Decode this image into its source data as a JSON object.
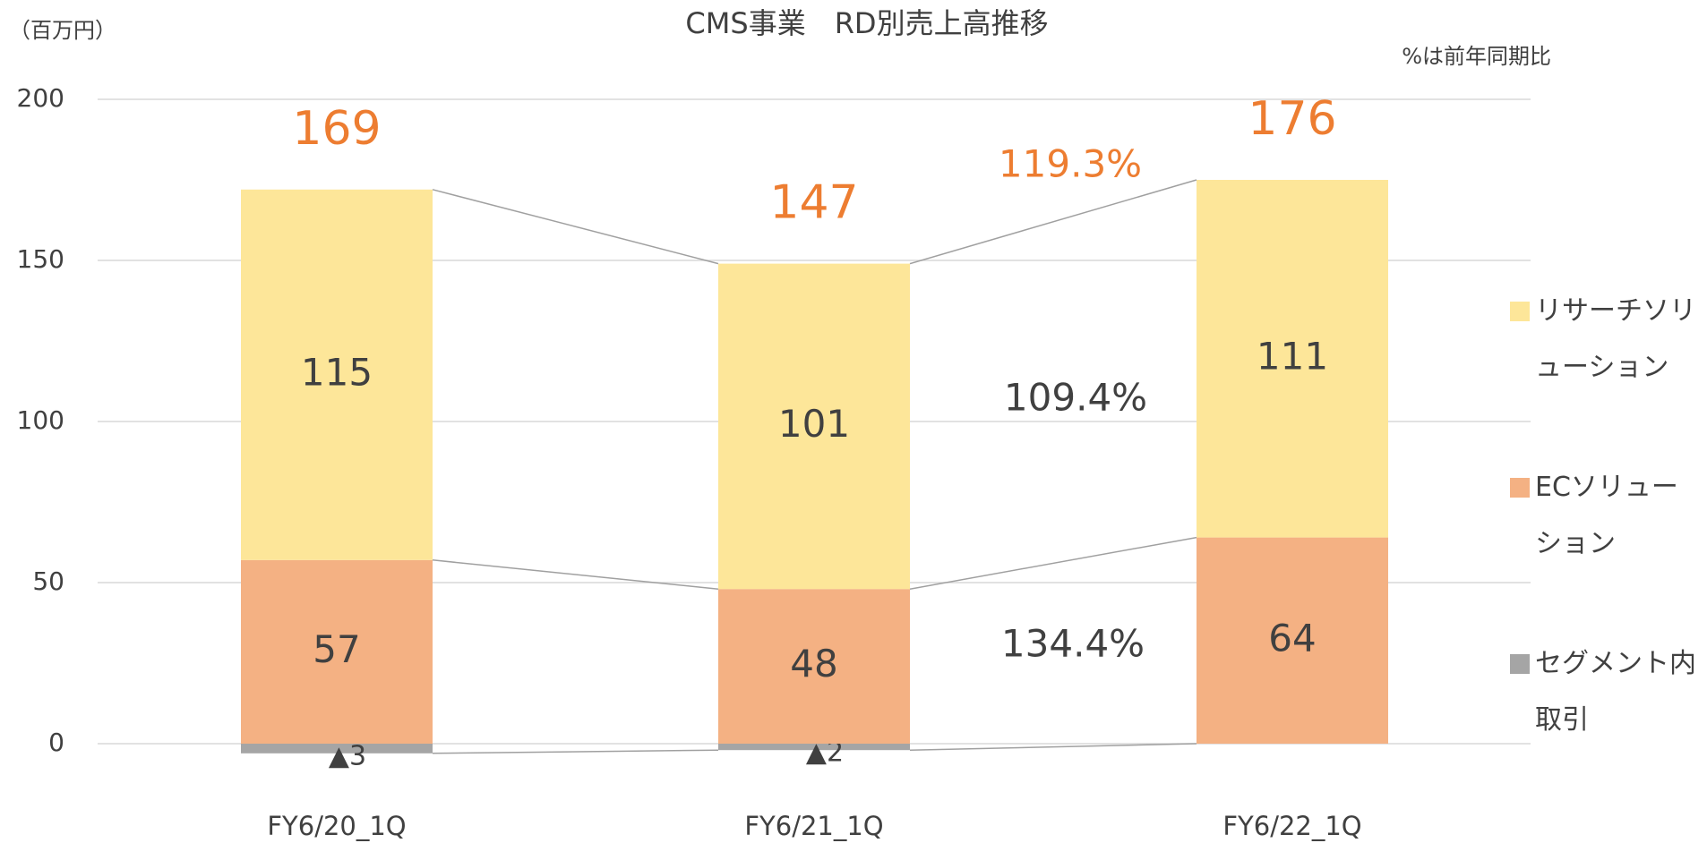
{
  "chart_data": {
    "type": "bar",
    "stacked": true,
    "title": "CMS事業　RD別売上高推移",
    "y_axis_label": "（百万円）",
    "note": "%は前年同期比",
    "categories": [
      "FY6/20_1Q",
      "FY6/21_1Q",
      "FY6/22_1Q"
    ],
    "series": [
      {
        "name": "セグメント内取引",
        "color": "#a5a5a5",
        "values": [
          -3,
          -2,
          0
        ],
        "value_labels": [
          "▲3",
          "▲2",
          null
        ]
      },
      {
        "name": "ECソリューション",
        "color": "#f4b183",
        "values": [
          57,
          48,
          64
        ]
      },
      {
        "name": "リサーチソリューション",
        "color": "#fde699",
        "values": [
          115,
          101,
          111
        ]
      }
    ],
    "totals": [
      169,
      147,
      176
    ],
    "total_color": "#ed7d31",
    "annotations": [
      {
        "text": "119.3%",
        "color": "#ed7d31"
      },
      {
        "text": "109.4%",
        "color": "#404040"
      },
      {
        "text": "134.4%",
        "color": "#404040"
      }
    ],
    "ylim": [
      0,
      200
    ],
    "yticks": [
      0,
      50,
      100,
      150,
      200
    ],
    "grid": true,
    "legend": "right"
  }
}
